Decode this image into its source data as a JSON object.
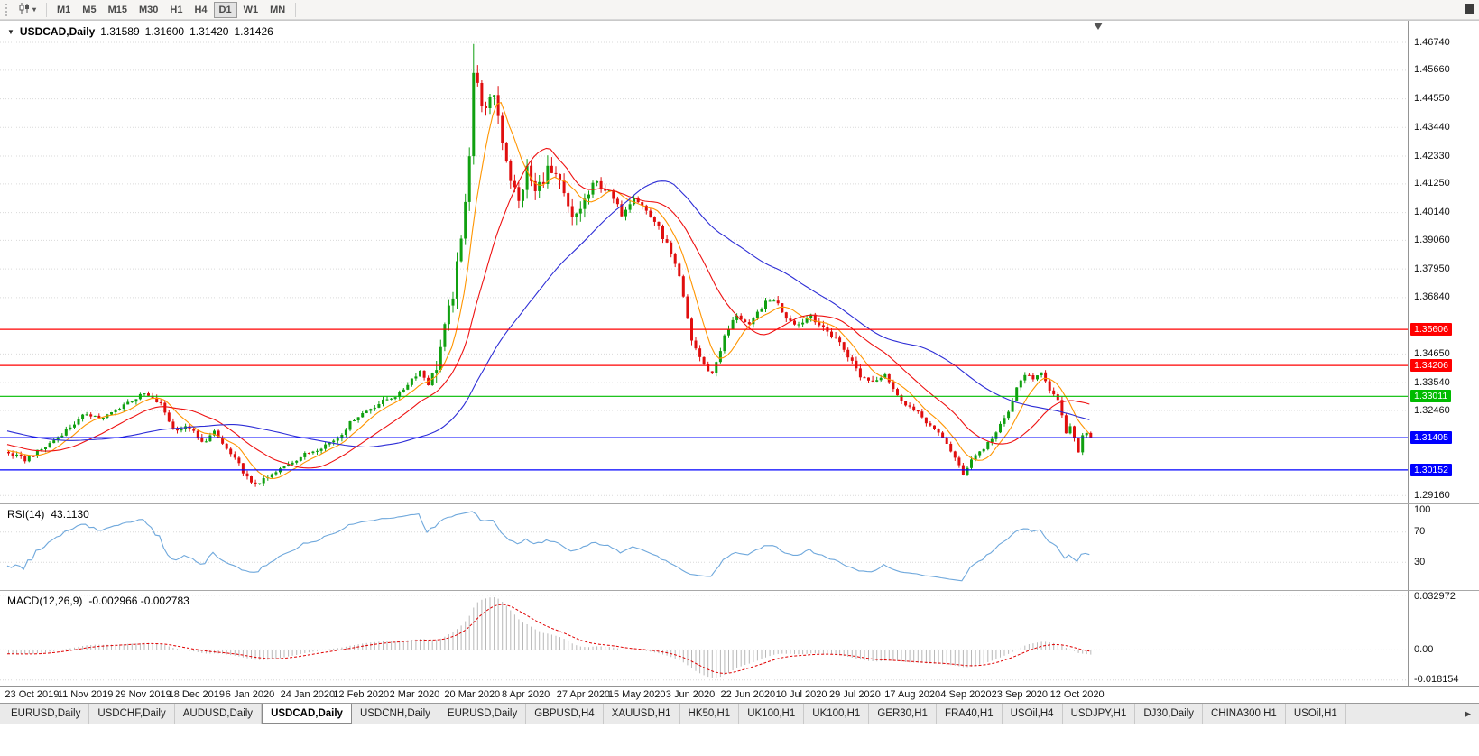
{
  "toolbar": {
    "timeframes": [
      "M1",
      "M5",
      "M15",
      "M30",
      "H1",
      "H4",
      "D1",
      "W1",
      "MN"
    ],
    "active_timeframe": "D1"
  },
  "chart": {
    "symbol_period": "USDCAD,Daily",
    "ohlc": {
      "open": "1.31589",
      "high": "1.31600",
      "low": "1.31420",
      "close": "1.31426"
    },
    "price_axis_labels": [
      "1.46740",
      "1.45660",
      "1.44550",
      "1.43440",
      "1.42330",
      "1.41250",
      "1.40140",
      "1.39060",
      "1.37950",
      "1.36840",
      "1.34650",
      "1.33540",
      "1.32460",
      "1.29160"
    ],
    "hlines": [
      {
        "price": "1.35606",
        "color": "#FF0000"
      },
      {
        "price": "1.34206",
        "color": "#FF0000"
      },
      {
        "price": "1.33011",
        "color": "#00BB00"
      },
      {
        "price": "1.31405",
        "color": "#0000FF"
      },
      {
        "price": "1.30152",
        "color": "#0000FF"
      }
    ],
    "time_axis_labels": [
      "23 Oct 2019",
      "11 Nov 2019",
      "29 Nov 2019",
      "18 Dec 2019",
      "6 Jan 2020",
      "24 Jan 2020",
      "12 Feb 2020",
      "2 Mar 2020",
      "20 Mar 2020",
      "8 Apr 2020",
      "27 Apr 2020",
      "15 May 2020",
      "3 Jun 2020",
      "22 Jun 2020",
      "10 Jul 2020",
      "29 Jul 2020",
      "17 Aug 2020",
      "4 Sep 2020",
      "23 Sep 2020",
      "12 Oct 2020"
    ]
  },
  "rsi": {
    "name": "RSI(14)",
    "value": "43.1130",
    "axis_labels": [
      "100",
      "70",
      "30"
    ],
    "line_color": "#6FA8DC"
  },
  "macd": {
    "name": "MACD(12,26,9)",
    "value": "-0.002966 -0.002783",
    "axis_labels": [
      "0.032972",
      "0.00",
      "-0.018154"
    ],
    "histogram_color": "#B8B8B8",
    "signal_color": "#E00000"
  },
  "tabs": {
    "items": [
      "EURUSD,Daily",
      "USDCHF,Daily",
      "AUDUSD,Daily",
      "USDCAD,Daily",
      "USDCNH,Daily",
      "EURUSD,Daily",
      "GBPUSD,H4",
      "XAUUSD,H1",
      "HK50,H1",
      "UK100,H1",
      "UK100,H1",
      "GER30,H1",
      "FRA40,H1",
      "USOil,H4",
      "USDJPY,H1",
      "DJ30,Daily",
      "CHINA300,H1",
      "USOil,H1"
    ],
    "active_index": 3
  },
  "chart_data": {
    "type": "candlestick",
    "symbol": "USDCAD",
    "timeframe": "Daily",
    "num_candles": 264,
    "price_ylim": [
      1.28855,
      1.4758
    ],
    "candle_colors": {
      "up": "#10A010",
      "down": "#E00E0E"
    },
    "time_tick_indices": [
      6,
      19,
      33,
      46,
      59,
      73,
      86,
      99,
      113,
      126,
      140,
      153,
      166,
      180,
      193,
      206,
      220,
      233,
      246,
      260
    ],
    "close_path_anchors": [
      [
        0,
        1.308
      ],
      [
        4,
        1.3055
      ],
      [
        9,
        1.3105
      ],
      [
        14,
        1.317
      ],
      [
        19,
        1.3235
      ],
      [
        23,
        1.3215
      ],
      [
        28,
        1.327
      ],
      [
        33,
        1.331
      ],
      [
        37,
        1.327
      ],
      [
        40,
        1.3175
      ],
      [
        44,
        1.318
      ],
      [
        47,
        1.312
      ],
      [
        50,
        1.316
      ],
      [
        53,
        1.3095
      ],
      [
        56,
        1.3035
      ],
      [
        59,
        1.296
      ],
      [
        62,
        1.2975
      ],
      [
        65,
        1.3005
      ],
      [
        68,
        1.304
      ],
      [
        72,
        1.3075
      ],
      [
        76,
        1.3105
      ],
      [
        80,
        1.314
      ],
      [
        84,
        1.3215
      ],
      [
        88,
        1.3255
      ],
      [
        92,
        1.329
      ],
      [
        95,
        1.331
      ],
      [
        98,
        1.337
      ],
      [
        100,
        1.34
      ],
      [
        102,
        1.335
      ],
      [
        104,
        1.342
      ],
      [
        106,
        1.356
      ],
      [
        108,
        1.37
      ],
      [
        110,
        1.39
      ],
      [
        112,
        1.425
      ],
      [
        113,
        1.456
      ],
      [
        114,
        1.45
      ],
      [
        116,
        1.44
      ],
      [
        118,
        1.448
      ],
      [
        120,
        1.43
      ],
      [
        122,
        1.415
      ],
      [
        124,
        1.405
      ],
      [
        126,
        1.418
      ],
      [
        128,
        1.409
      ],
      [
        131,
        1.418
      ],
      [
        134,
        1.412
      ],
      [
        137,
        1.398
      ],
      [
        140,
        1.406
      ],
      [
        143,
        1.413
      ],
      [
        146,
        1.409
      ],
      [
        149,
        1.401
      ],
      [
        152,
        1.408
      ],
      [
        154,
        1.404
      ],
      [
        157,
        1.398
      ],
      [
        160,
        1.389
      ],
      [
        163,
        1.376
      ],
      [
        166,
        1.352
      ],
      [
        169,
        1.342
      ],
      [
        171,
        1.339
      ],
      [
        174,
        1.353
      ],
      [
        177,
        1.362
      ],
      [
        180,
        1.357
      ],
      [
        183,
        1.365
      ],
      [
        186,
        1.368
      ],
      [
        189,
        1.361
      ],
      [
        192,
        1.358
      ],
      [
        195,
        1.362
      ],
      [
        198,
        1.356
      ],
      [
        201,
        1.353
      ],
      [
        204,
        1.346
      ],
      [
        207,
        1.338
      ],
      [
        210,
        1.336
      ],
      [
        213,
        1.339
      ],
      [
        216,
        1.33
      ],
      [
        219,
        1.326
      ],
      [
        222,
        1.322
      ],
      [
        225,
        1.317
      ],
      [
        228,
        1.312
      ],
      [
        230,
        1.306
      ],
      [
        232,
        1.2995
      ],
      [
        234,
        1.306
      ],
      [
        237,
        1.31
      ],
      [
        240,
        1.316
      ],
      [
        243,
        1.324
      ],
      [
        245,
        1.333
      ],
      [
        247,
        1.339
      ],
      [
        249,
        1.336
      ],
      [
        251,
        1.34
      ],
      [
        253,
        1.333
      ],
      [
        255,
        1.328
      ],
      [
        256,
        1.322
      ],
      [
        257,
        1.316
      ],
      [
        258,
        1.318
      ],
      [
        259,
        1.313
      ],
      [
        260,
        1.309
      ],
      [
        261,
        1.315
      ],
      [
        262,
        1.316
      ],
      [
        263,
        1.31426
      ]
    ],
    "spike": {
      "index": 113,
      "high": 1.4668
    },
    "moving_averages": [
      {
        "period": 8,
        "color": "#FF9500"
      },
      {
        "period": 20,
        "color": "#EE1111"
      },
      {
        "period": 50,
        "color": "#2D2DD6"
      }
    ],
    "rsi": {
      "period": 14,
      "ylim": [
        -7,
        107
      ],
      "levels": [
        70,
        30
      ],
      "current": 43.113
    },
    "macd": {
      "fast": 12,
      "slow": 26,
      "signal": 9,
      "ylim": [
        -0.0215,
        0.0355
      ],
      "current_macd": -0.002966,
      "current_signal": -0.002783
    }
  }
}
